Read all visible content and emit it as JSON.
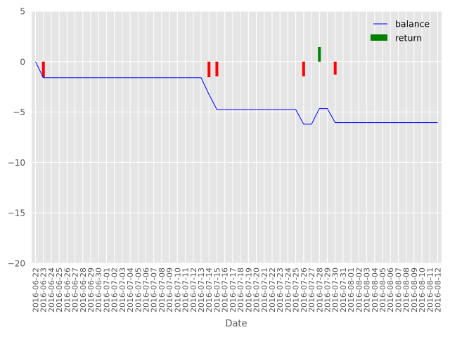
{
  "chart_data": {
    "type": "line+bar",
    "title": "",
    "xlabel": "Date",
    "ylabel": "",
    "ylim": [
      -20,
      5
    ],
    "yticks": [
      5,
      0,
      -5,
      -10,
      -15,
      -20
    ],
    "ytick_labels": [
      "5",
      "0",
      "−5",
      "−10",
      "−15",
      "−20"
    ],
    "grid": true,
    "legend_position": "top-right",
    "categories": [
      "2016-06-22",
      "2016-06-23",
      "2016-06-24",
      "2016-06-25",
      "2016-06-26",
      "2016-06-27",
      "2016-06-28",
      "2016-06-29",
      "2016-06-30",
      "2016-07-01",
      "2016-07-02",
      "2016-07-03",
      "2016-07-04",
      "2016-07-05",
      "2016-07-06",
      "2016-07-07",
      "2016-07-08",
      "2016-07-09",
      "2016-07-10",
      "2016-07-11",
      "2016-07-12",
      "2016-07-13",
      "2016-07-14",
      "2016-07-15",
      "2016-07-16",
      "2016-07-17",
      "2016-07-18",
      "2016-07-19",
      "2016-07-20",
      "2016-07-21",
      "2016-07-22",
      "2016-07-23",
      "2016-07-24",
      "2016-07-25",
      "2016-07-26",
      "2016-07-27",
      "2016-07-28",
      "2016-07-29",
      "2016-07-30",
      "2016-07-31",
      "2016-08-01",
      "2016-08-02",
      "2016-08-03",
      "2016-08-04",
      "2016-08-05",
      "2016-08-06",
      "2016-08-07",
      "2016-08-08",
      "2016-08-09",
      "2016-08-10",
      "2016-08-11",
      "2016-08-12"
    ],
    "series": [
      {
        "name": "balance",
        "kind": "line",
        "color": "#0000ff",
        "values": [
          0,
          -1.6,
          -1.6,
          -1.6,
          -1.6,
          -1.6,
          -1.6,
          -1.6,
          -1.6,
          -1.6,
          -1.6,
          -1.6,
          -1.6,
          -1.6,
          -1.6,
          -1.6,
          -1.6,
          -1.6,
          -1.6,
          -1.6,
          -1.6,
          -1.6,
          -3.25,
          -4.75,
          -4.75,
          -4.75,
          -4.75,
          -4.75,
          -4.75,
          -4.75,
          -4.75,
          -4.75,
          -4.75,
          -4.75,
          -6.2,
          -6.2,
          -4.65,
          -4.65,
          -6.05,
          -6.05,
          -6.05,
          -6.05,
          -6.05,
          -6.05,
          -6.05,
          -6.05,
          -6.05,
          -6.05,
          -6.05,
          -6.05,
          -6.05,
          -6.05
        ]
      },
      {
        "name": "return",
        "kind": "bar",
        "color": "#008000",
        "negative_color": "#ff0000",
        "values": [
          0,
          -1.55,
          0,
          0,
          0,
          0,
          0,
          0,
          0,
          0,
          0,
          0,
          0,
          0,
          0,
          0,
          0,
          0,
          0,
          0,
          0,
          0,
          -1.55,
          -1.45,
          0,
          0,
          0,
          0,
          0,
          0,
          0,
          0,
          0,
          0,
          -1.45,
          0,
          1.45,
          0,
          -1.3,
          0,
          0,
          0,
          0,
          0,
          0,
          0,
          0,
          0,
          0,
          0,
          0,
          0
        ]
      }
    ],
    "colors": {
      "plot_bg": "#e5e5e5",
      "grid": "#ffffff",
      "text": "#555555"
    }
  }
}
